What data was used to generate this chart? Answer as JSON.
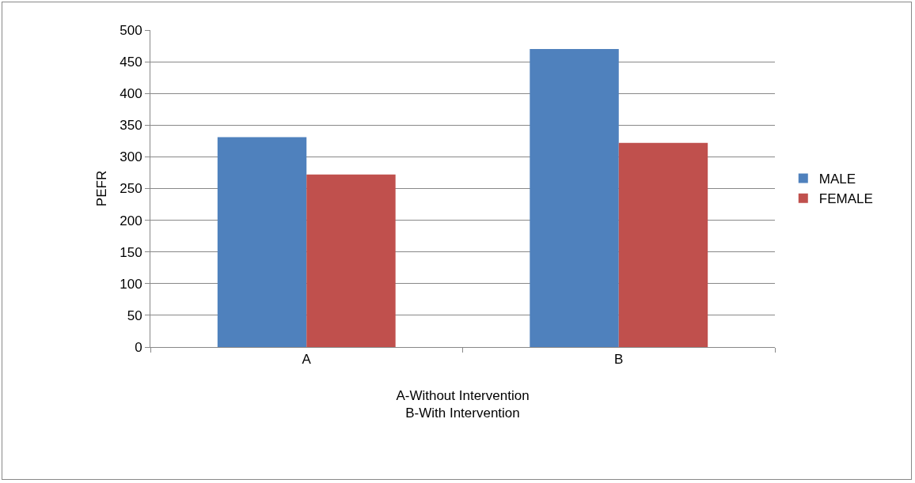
{
  "chart_data": {
    "type": "bar",
    "categories": [
      "A",
      "B"
    ],
    "xlabel": "A-Without Intervention\nB-With Intervention",
    "ylabel": "PEFR",
    "series": [
      {
        "name": "MALE",
        "color": "#4f81bd",
        "values": [
          331,
          470
        ]
      },
      {
        "name": "FEMALE",
        "color": "#c0504d",
        "values": [
          272,
          322
        ]
      }
    ],
    "ylim": [
      0,
      500
    ],
    "yticks": [
      0,
      50,
      100,
      150,
      200,
      250,
      300,
      350,
      400,
      450,
      500
    ],
    "grid": "y",
    "legend": "right"
  }
}
